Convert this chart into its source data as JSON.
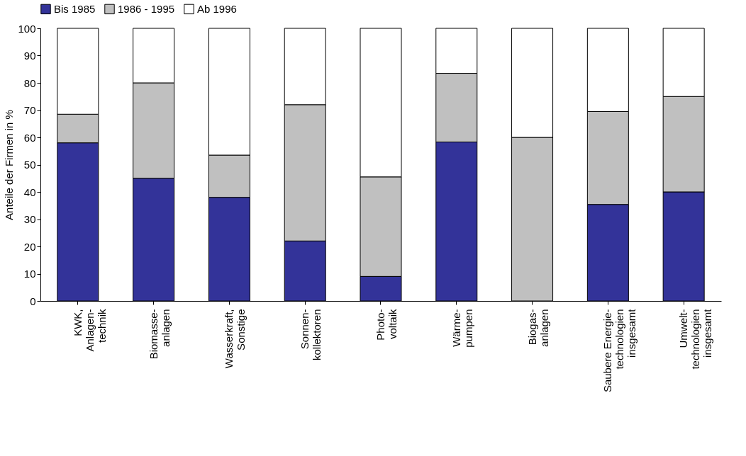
{
  "chart_data": {
    "type": "bar",
    "stacked": true,
    "ylabel": "Anteile der Firmen in %",
    "categories": [
      "KWK,\nAnlagen-\ntechnik",
      "Biomasse-\nanlagen",
      "Wasserkraft,\nSonstige",
      "Sonnen-\nkollektoren",
      "Photo-\nvoltaik",
      "Wärme-\npumpen",
      "Biogas-\nanlagen",
      "Saubere Energie-\ntechnologien\ninsgesamt",
      "Umwelt-\ntechnologien\ninsgesamt"
    ],
    "series": [
      {
        "name": "Bis 1985",
        "color": "#333399",
        "values": [
          58,
          45,
          38,
          22,
          9,
          58.3,
          0,
          35.4,
          40
        ]
      },
      {
        "name": "1986 - 1995",
        "color": "#c0c0c0",
        "values": [
          10.5,
          35,
          15.5,
          50,
          36.5,
          25.2,
          60,
          34.1,
          35
        ]
      },
      {
        "name": "Ab 1996",
        "color": "#ffffff",
        "values": [
          31.5,
          20,
          46.5,
          28,
          54.5,
          16.5,
          40,
          30.5,
          25
        ]
      }
    ],
    "ylim": [
      0,
      100
    ],
    "yticks": [
      0,
      10,
      20,
      30,
      40,
      50,
      60,
      70,
      80,
      90,
      100
    ],
    "grid": false,
    "legend": "top"
  }
}
